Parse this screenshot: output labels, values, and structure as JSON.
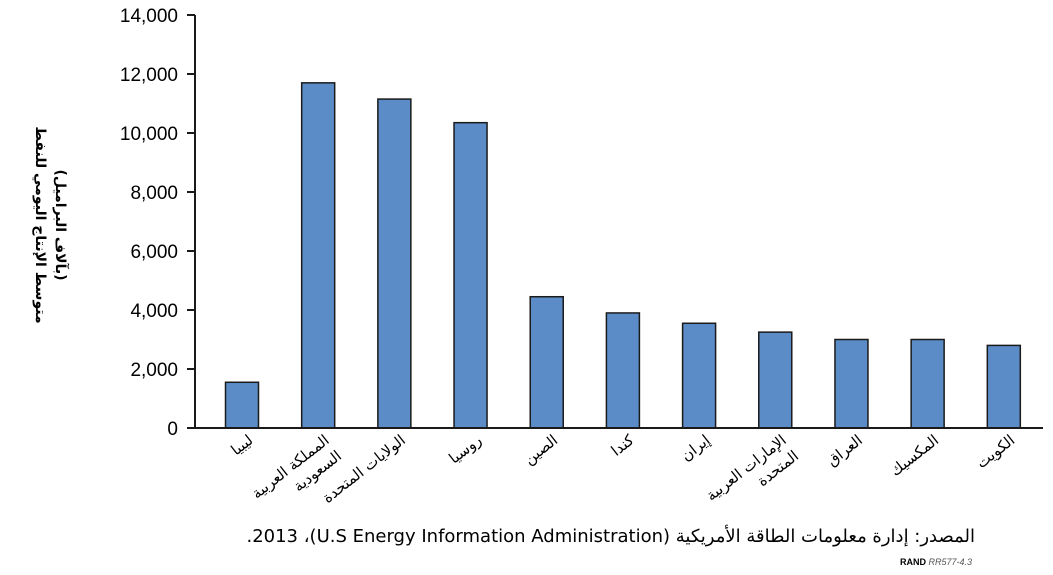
{
  "chart_data": {
    "type": "bar",
    "ylabel": "متوسط الإنتاج اليومي للنفط",
    "ylabel_sub": "(بآلاف البراميل)",
    "categories": [
      "ليبيا",
      "المملكة العربية السعودية",
      "الولايات المتحدة",
      "روسيا",
      "الصين",
      "كندا",
      "إيران",
      "الإمارات العربية المتحدة",
      "العراق",
      "المكسيك",
      "الكويت"
    ],
    "category_lines": [
      [
        "ليبيا"
      ],
      [
        "المملكة العربية",
        "السعودية"
      ],
      [
        "الولايات المتحدة"
      ],
      [
        "روسيا"
      ],
      [
        "الصين"
      ],
      [
        "كندا"
      ],
      [
        "إيران"
      ],
      [
        "الإمارات العربية",
        "المتحدة"
      ],
      [
        "العراق"
      ],
      [
        "المكسيك"
      ],
      [
        "الكويت"
      ]
    ],
    "values": [
      1550,
      11700,
      11150,
      10350,
      4450,
      3900,
      3550,
      3250,
      3000,
      3000,
      2800
    ],
    "ylim": [
      0,
      14000
    ],
    "yticks": [
      "0",
      "2,000",
      "4,000",
      "6,000",
      "8,000",
      "10,000",
      "12,000",
      "14,000"
    ],
    "ytick_values": [
      0,
      2000,
      4000,
      6000,
      8000,
      10000,
      12000,
      14000
    ],
    "grid": false,
    "colors": {
      "bar_fill": "#5b8cc8",
      "bar_stroke": "#1a1a1a",
      "axis": "#1a1a1a"
    }
  },
  "source": "المصدر: إدارة معلومات الطاقة الأمريكية (U.S Energy Information Administration)، 2013.",
  "credit": {
    "org": "RAND",
    "code": "RR577-4.3"
  }
}
